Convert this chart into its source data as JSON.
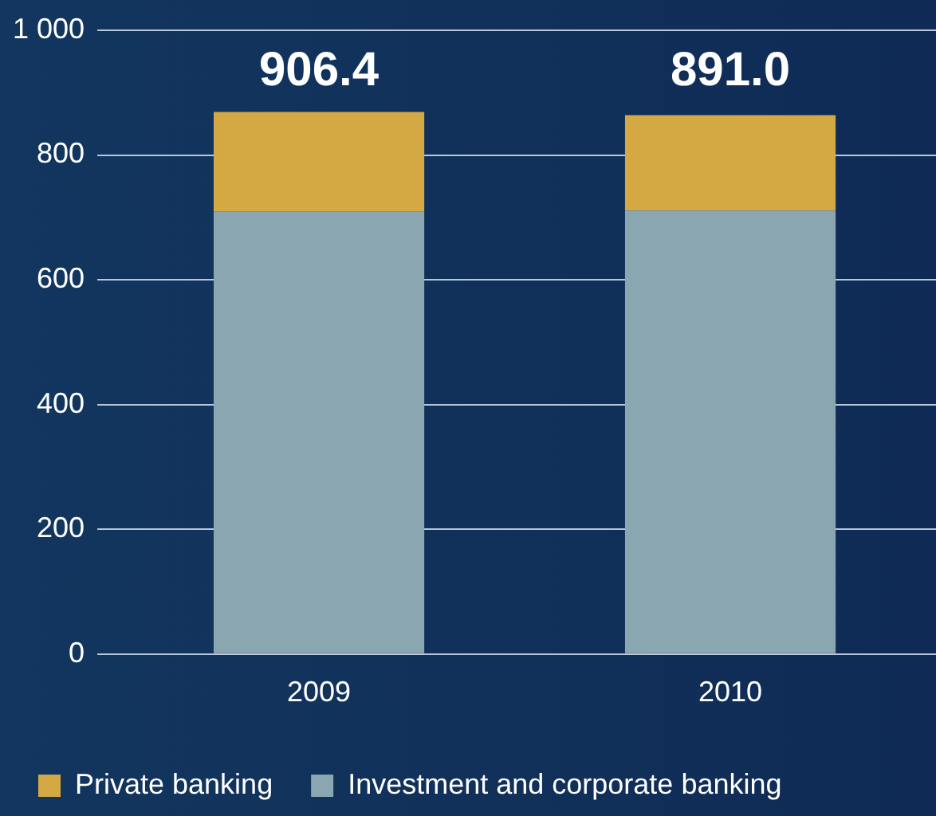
{
  "chart_data": {
    "type": "bar",
    "stacked": true,
    "categories": [
      "2009",
      "2010"
    ],
    "series": [
      {
        "name": "Investment and corporate banking",
        "color": "#8aa6b1",
        "values": [
          709,
          711
        ]
      },
      {
        "name": "Private banking",
        "color": "#d4a843",
        "values": [
          160,
          153
        ]
      }
    ],
    "annotations": [
      "906.4",
      "891.0"
    ],
    "ylim": [
      0,
      1000
    ],
    "yticks": [
      0,
      200,
      400,
      600,
      800,
      {
        "value": 1000,
        "label": "1 000"
      }
    ],
    "grid": "y",
    "legend": "bottom"
  }
}
